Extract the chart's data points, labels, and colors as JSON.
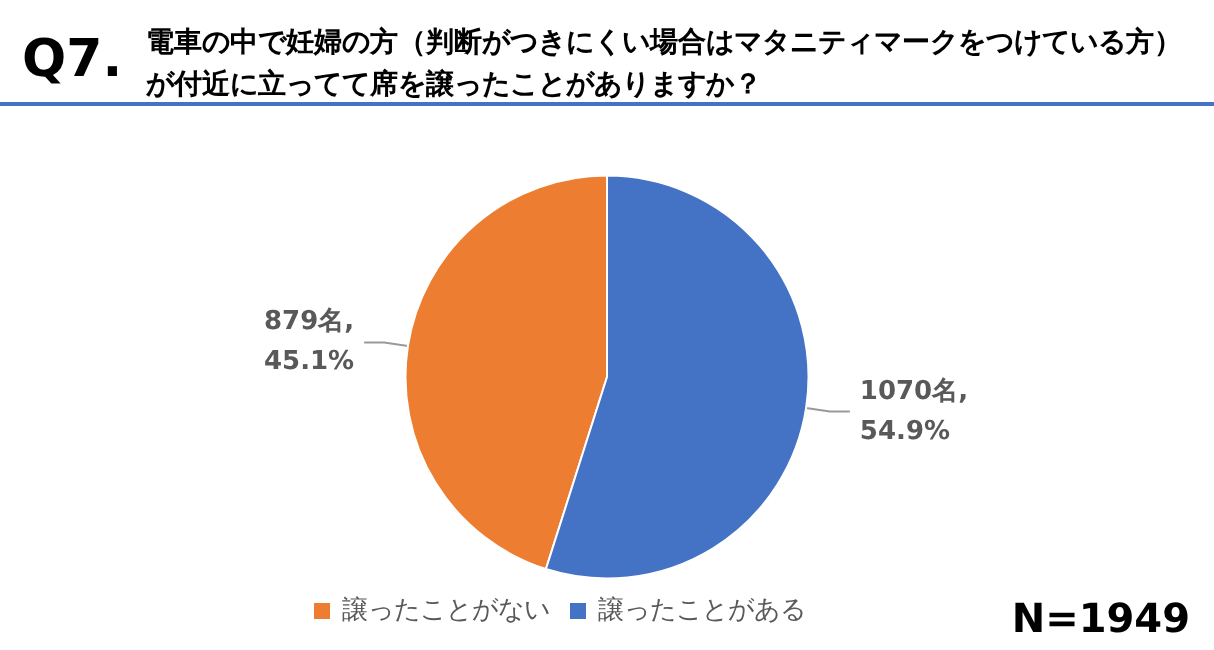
{
  "chart_data": {
    "type": "pie",
    "title": "Q7.",
    "subtitle": "電車の中で妊婦の方（判断がつきにくい場合はマタニティマークをつけている方）が付近に立ってて席を譲ったことがありますか？",
    "categories": [
      "譲ったことがない",
      "譲ったことがある"
    ],
    "values": [
      879,
      1070
    ],
    "value_labels": [
      "879名,\n45.1%",
      "1070名,\n54.9%"
    ],
    "colors": [
      "#ed7d31",
      "#4472c4"
    ],
    "legend": "bottom left",
    "annotations": [
      "N=1949"
    ]
  }
}
